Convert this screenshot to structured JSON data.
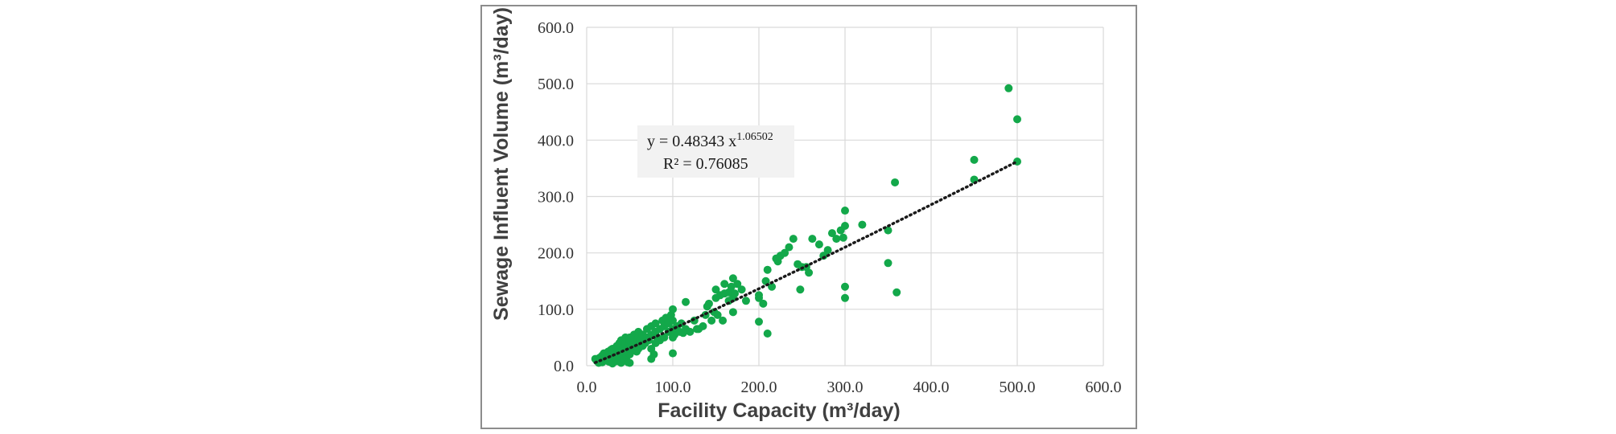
{
  "chart_data": {
    "type": "scatter",
    "xlabel": "Facility Capacity (m³/day)",
    "ylabel": "Sewage Influent Volume (m³/day)",
    "xlim": [
      0,
      600
    ],
    "ylim": [
      0,
      600
    ],
    "x_ticks": [
      "0.0",
      "100.0",
      "200.0",
      "300.0",
      "400.0",
      "500.0",
      "600.0"
    ],
    "y_ticks": [
      "0.0",
      "100.0",
      "200.0",
      "300.0",
      "400.0",
      "500.0",
      "600.0"
    ],
    "grid": true,
    "marker_color": "#13a84a",
    "trendline": {
      "type": "power",
      "a": 0.48343,
      "b": 1.06502,
      "x_range": [
        10,
        500
      ],
      "style": "dotted",
      "color": "#1a1a1a",
      "equation_prefix": "y = 0.48343  x",
      "equation_exponent": "1.06502",
      "r_squared_text": "R² = 0.76085"
    },
    "points": [
      [
        10,
        12
      ],
      [
        12,
        8
      ],
      [
        14,
        5
      ],
      [
        15,
        14
      ],
      [
        16,
        10
      ],
      [
        18,
        18
      ],
      [
        18,
        6
      ],
      [
        20,
        12
      ],
      [
        20,
        22
      ],
      [
        22,
        9
      ],
      [
        22,
        16
      ],
      [
        24,
        20
      ],
      [
        25,
        14
      ],
      [
        25,
        25
      ],
      [
        26,
        7
      ],
      [
        28,
        18
      ],
      [
        28,
        28
      ],
      [
        30,
        10
      ],
      [
        30,
        22
      ],
      [
        30,
        30
      ],
      [
        30,
        4
      ],
      [
        32,
        15
      ],
      [
        32,
        26
      ],
      [
        34,
        20
      ],
      [
        35,
        8
      ],
      [
        35,
        30
      ],
      [
        35,
        35
      ],
      [
        36,
        12
      ],
      [
        36,
        25
      ],
      [
        38,
        18
      ],
      [
        38,
        40
      ],
      [
        40,
        5
      ],
      [
        40,
        15
      ],
      [
        40,
        25
      ],
      [
        40,
        35
      ],
      [
        40,
        45
      ],
      [
        42,
        20
      ],
      [
        42,
        30
      ],
      [
        44,
        10
      ],
      [
        45,
        25
      ],
      [
        45,
        40
      ],
      [
        45,
        50
      ],
      [
        46,
        15
      ],
      [
        48,
        35
      ],
      [
        48,
        6
      ],
      [
        50,
        5
      ],
      [
        50,
        20
      ],
      [
        50,
        30
      ],
      [
        50,
        40
      ],
      [
        50,
        50
      ],
      [
        50,
        45
      ],
      [
        52,
        28
      ],
      [
        55,
        35
      ],
      [
        55,
        45
      ],
      [
        55,
        55
      ],
      [
        58,
        25
      ],
      [
        58,
        40
      ],
      [
        60,
        30
      ],
      [
        60,
        50
      ],
      [
        60,
        60
      ],
      [
        62,
        45
      ],
      [
        65,
        35
      ],
      [
        65,
        55
      ],
      [
        68,
        40
      ],
      [
        70,
        50
      ],
      [
        70,
        65
      ],
      [
        72,
        45
      ],
      [
        75,
        30
      ],
      [
        75,
        55
      ],
      [
        75,
        70
      ],
      [
        75,
        12
      ],
      [
        78,
        20
      ],
      [
        80,
        40
      ],
      [
        80,
        60
      ],
      [
        80,
        75
      ],
      [
        82,
        50
      ],
      [
        85,
        45
      ],
      [
        85,
        65
      ],
      [
        88,
        80
      ],
      [
        90,
        50
      ],
      [
        90,
        70
      ],
      [
        92,
        85
      ],
      [
        95,
        60
      ],
      [
        95,
        75
      ],
      [
        98,
        90
      ],
      [
        100,
        22
      ],
      [
        100,
        50
      ],
      [
        100,
        65
      ],
      [
        100,
        80
      ],
      [
        100,
        100
      ],
      [
        102,
        55
      ],
      [
        105,
        70
      ],
      [
        108,
        60
      ],
      [
        110,
        75
      ],
      [
        112,
        58
      ],
      [
        115,
        65
      ],
      [
        115,
        113
      ],
      [
        120,
        60
      ],
      [
        125,
        80
      ],
      [
        128,
        65
      ],
      [
        130,
        65
      ],
      [
        135,
        70
      ],
      [
        138,
        90
      ],
      [
        140,
        105
      ],
      [
        142,
        110
      ],
      [
        145,
        80
      ],
      [
        148,
        95
      ],
      [
        150,
        135
      ],
      [
        150,
        120
      ],
      [
        152,
        90
      ],
      [
        155,
        125
      ],
      [
        158,
        80
      ],
      [
        160,
        128
      ],
      [
        160,
        145
      ],
      [
        165,
        115
      ],
      [
        165,
        130
      ],
      [
        168,
        140
      ],
      [
        170,
        95
      ],
      [
        170,
        155
      ],
      [
        170,
        120
      ],
      [
        172,
        128
      ],
      [
        175,
        145
      ],
      [
        180,
        135
      ],
      [
        185,
        115
      ],
      [
        200,
        78
      ],
      [
        200,
        120
      ],
      [
        200,
        125
      ],
      [
        205,
        110
      ],
      [
        208,
        150
      ],
      [
        210,
        57
      ],
      [
        210,
        170
      ],
      [
        215,
        140
      ],
      [
        220,
        190
      ],
      [
        222,
        185
      ],
      [
        225,
        195
      ],
      [
        230,
        200
      ],
      [
        235,
        210
      ],
      [
        240,
        225
      ],
      [
        245,
        180
      ],
      [
        248,
        135
      ],
      [
        250,
        175
      ],
      [
        255,
        175
      ],
      [
        258,
        165
      ],
      [
        262,
        225
      ],
      [
        270,
        215
      ],
      [
        275,
        195
      ],
      [
        280,
        205
      ],
      [
        285,
        235
      ],
      [
        290,
        225
      ],
      [
        295,
        240
      ],
      [
        298,
        227
      ],
      [
        300,
        275
      ],
      [
        300,
        248
      ],
      [
        300,
        140
      ],
      [
        300,
        120
      ],
      [
        320,
        250
      ],
      [
        350,
        182
      ],
      [
        350,
        240
      ],
      [
        358,
        325
      ],
      [
        360,
        130
      ],
      [
        450,
        365
      ],
      [
        450,
        330
      ],
      [
        490,
        492
      ],
      [
        500,
        437
      ],
      [
        500,
        362
      ]
    ]
  }
}
